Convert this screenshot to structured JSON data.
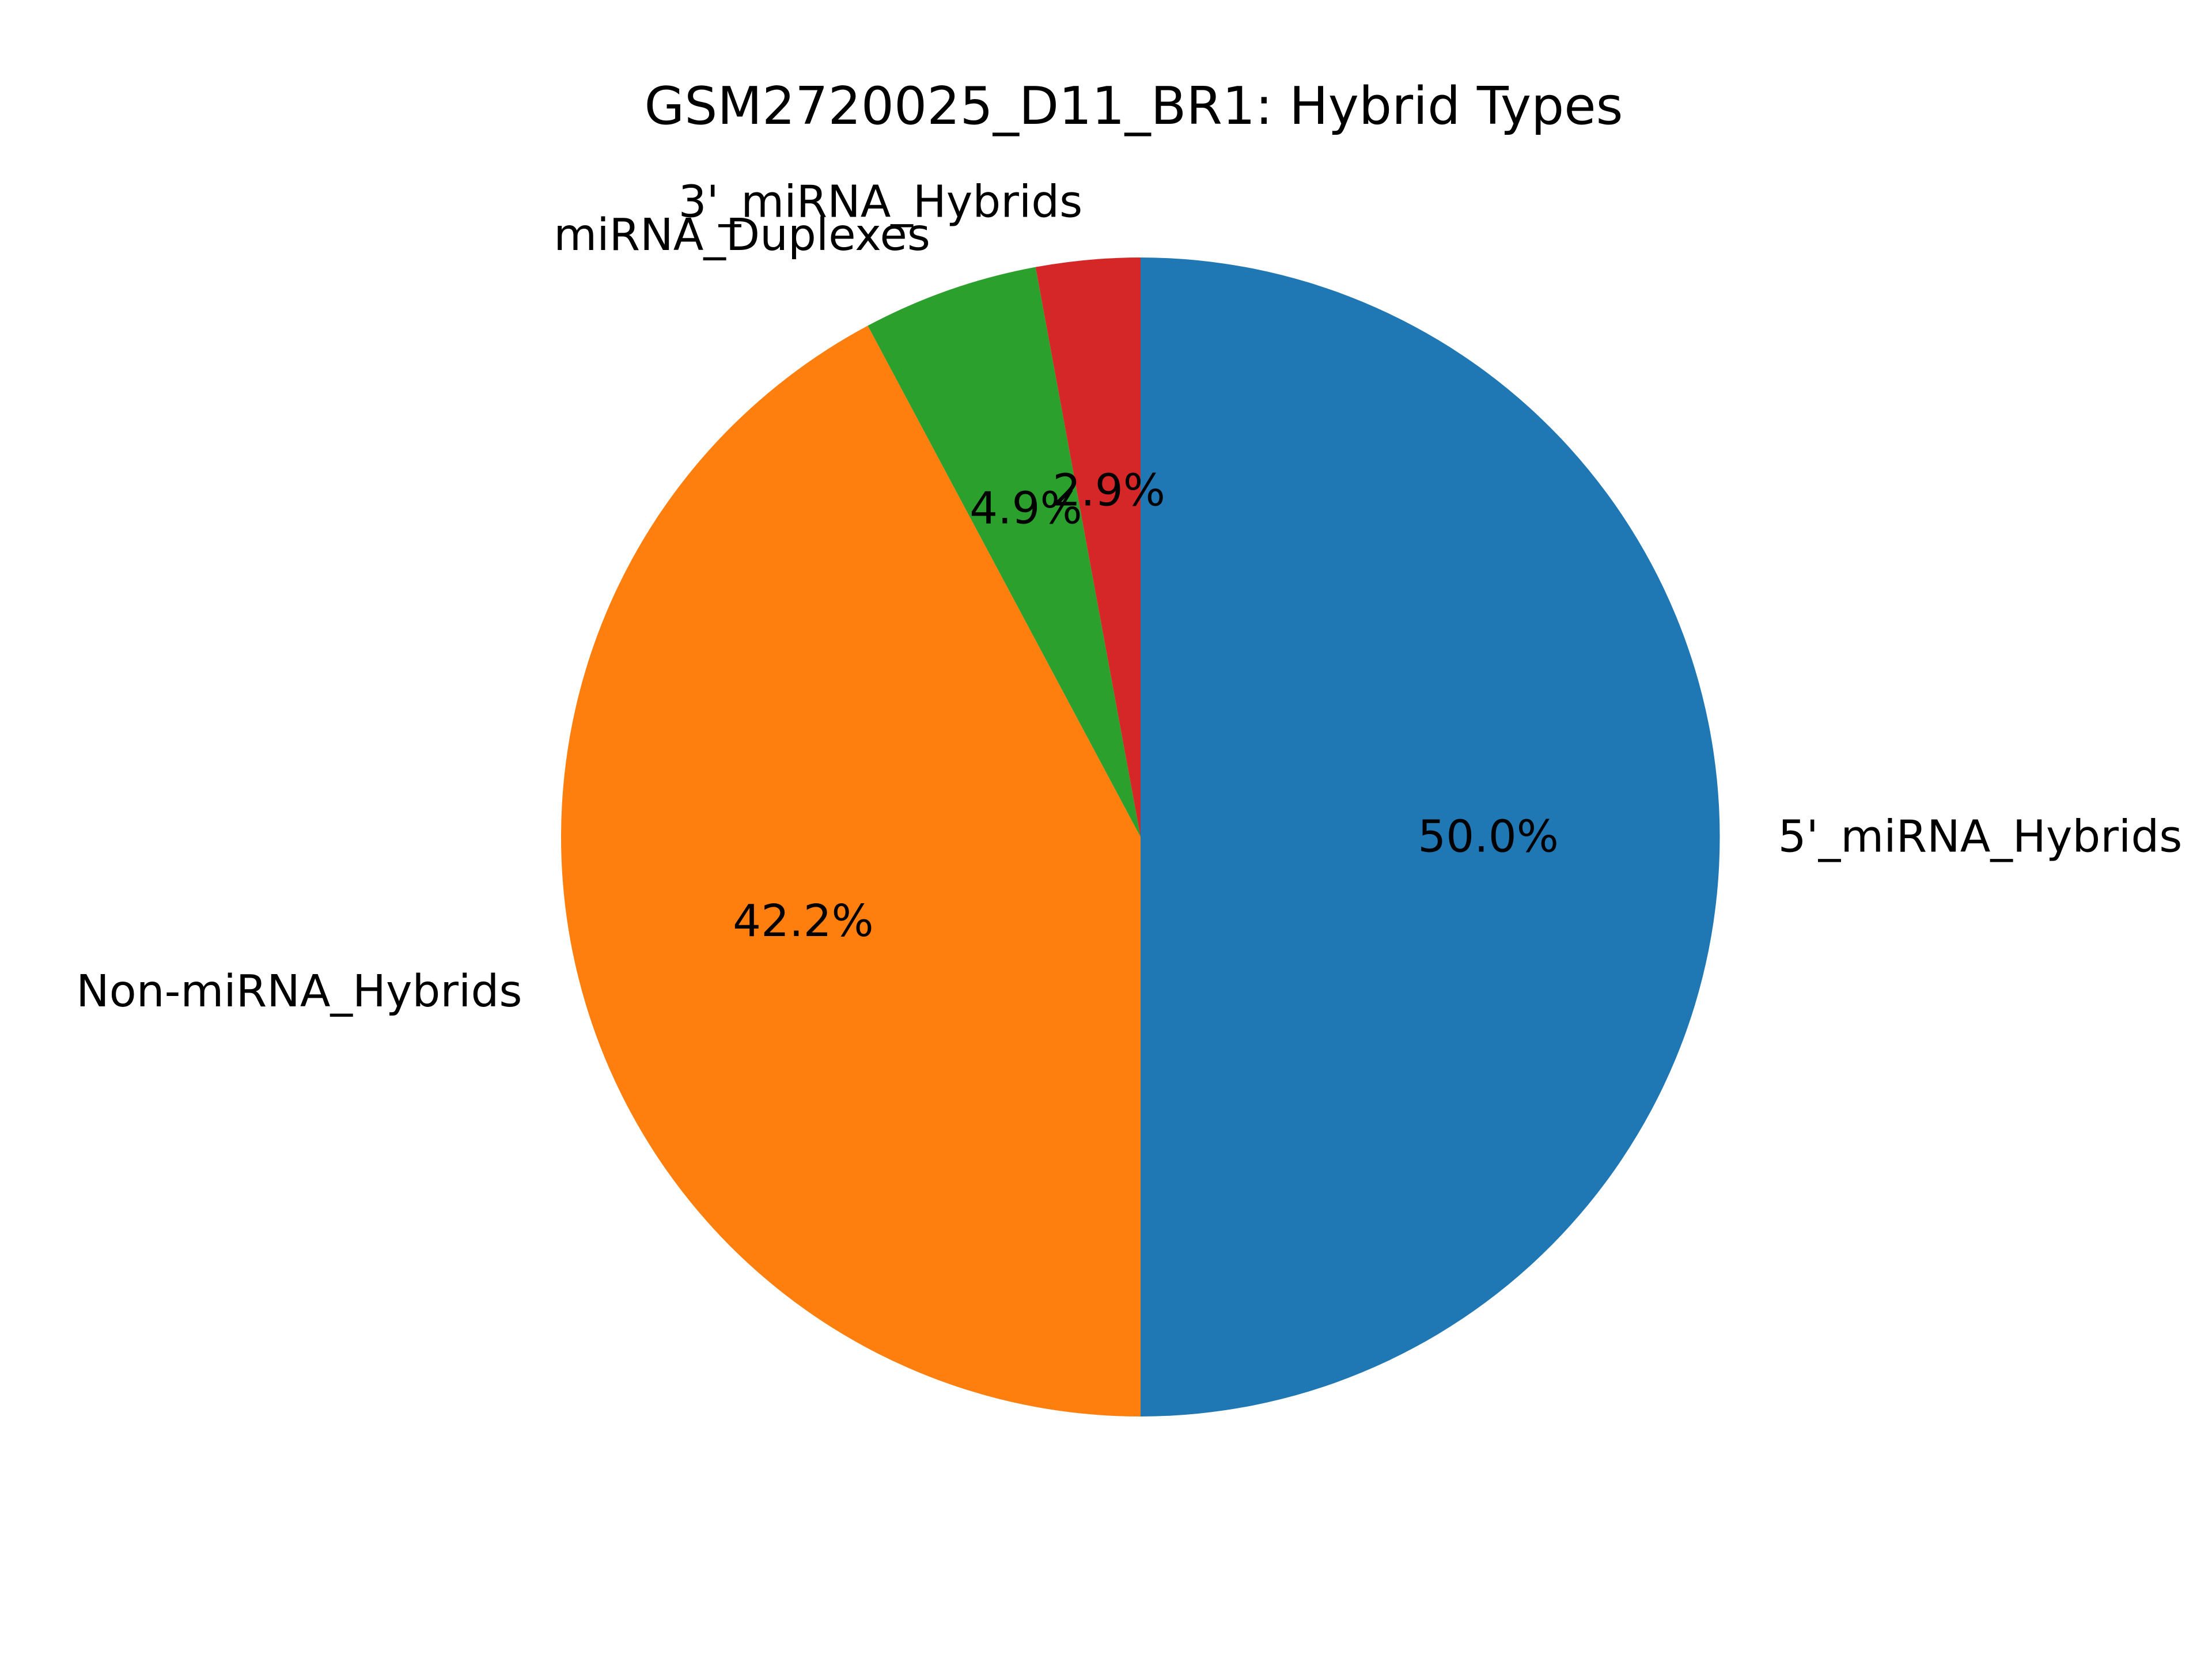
{
  "chart_data": {
    "type": "pie",
    "title": "GSM2720025_D11_BR1: Hybrid Types",
    "start_angle_deg": 90,
    "direction": "clockwise",
    "slices": [
      {
        "label": "5'_miRNA_Hybrids",
        "value": 50.0,
        "pct_label": "50.0%",
        "color": "#1f77b4"
      },
      {
        "label": "Non-miRNA_Hybrids",
        "value": 42.2,
        "pct_label": "42.2%",
        "color": "#ff7f0e"
      },
      {
        "label": "miRNA_Duplexes",
        "value": 4.9,
        "pct_label": "4.9%",
        "color": "#2ca02c"
      },
      {
        "label": "3'_miRNA_Hybrids",
        "value": 2.9,
        "pct_label": "2.9%",
        "color": "#d62728"
      }
    ]
  }
}
